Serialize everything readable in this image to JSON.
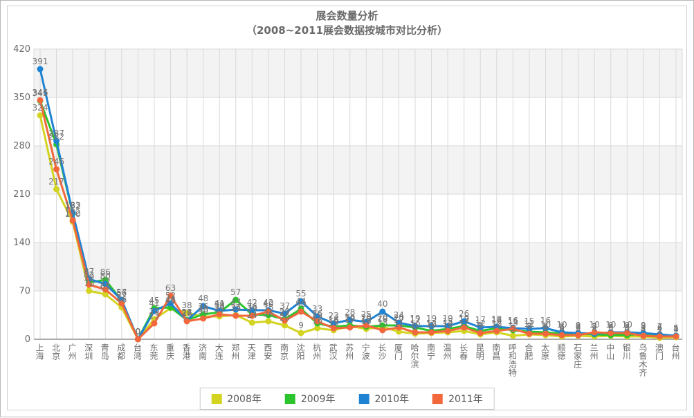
{
  "title": {
    "line1": "展会数量分析",
    "line2": "（2008~2011展会数据按城市对比分析）"
  },
  "chart_data": {
    "type": "line",
    "title": "展会数量分析",
    "subtitle": "（2008~2011展会数据按城市对比分析）",
    "xlabel": "",
    "ylabel": "",
    "ylim": [
      0,
      420
    ],
    "yticks": [
      0,
      70,
      140,
      210,
      280,
      350,
      420
    ],
    "grid": true,
    "legend_position": "bottom",
    "categories": [
      "上海",
      "北京",
      "广州",
      "深圳",
      "青岛",
      "成都",
      "台湾",
      "东莞",
      "重庆",
      "香港",
      "济南",
      "大连",
      "郑州",
      "天津",
      "西安",
      "南京",
      "沈阳",
      "杭州",
      "武汉",
      "苏州",
      "宁波",
      "长沙",
      "厦门",
      "哈尔滨",
      "南宁",
      "温州",
      "长春",
      "昆明",
      "南昌",
      "呼和浩特",
      "合肥",
      "太原",
      "顺德",
      "石家庄",
      "兰州",
      "中山",
      "银川",
      "乌鲁木齐",
      "澳门",
      "台州"
    ],
    "series": [
      {
        "name": "2008年",
        "color": "#d3d322",
        "values": [
          324,
          217,
          170,
          70,
          65,
          46,
          0,
          29,
          45,
          38,
          33,
          33,
          35,
          24,
          26,
          20,
          9,
          16,
          13,
          19,
          15,
          18,
          11,
          8,
          9,
          10,
          12,
          7,
          10,
          5,
          7,
          6,
          4,
          5,
          4,
          5,
          4,
          4,
          2,
          3
        ]
      },
      {
        "name": "2009年",
        "color": "#2cc42c",
        "values": [
          345,
          282,
          182,
          82,
          86,
          56,
          0,
          45,
          46,
          28,
          36,
          39,
          57,
          36,
          35,
          29,
          44,
          23,
          18,
          20,
          18,
          20,
          20,
          17,
          12,
          15,
          19,
          12,
          16,
          13,
          11,
          10,
          8,
          8,
          7,
          6,
          6,
          8,
          6,
          5
        ]
      },
      {
        "name": "2010年",
        "color": "#1f83d3",
        "values": [
          391,
          287,
          183,
          87,
          80,
          57,
          0,
          41,
          52,
          27,
          48,
          41,
          43,
          42,
          42,
          37,
          55,
          33,
          23,
          28,
          25,
          40,
          24,
          19,
          19,
          19,
          26,
          17,
          18,
          16,
          15,
          16,
          10,
          9,
          8,
          10,
          10,
          9,
          7,
          5
        ]
      },
      {
        "name": "2011年",
        "color": "#f2683c",
        "values": [
          346,
          246,
          172,
          79,
          72,
          52,
          0,
          23,
          63,
          26,
          30,
          36,
          34,
          34,
          40,
          27,
          40,
          26,
          16,
          17,
          20,
          13,
          17,
          10,
          10,
          12,
          17,
          9,
          12,
          15,
          8,
          8,
          6,
          6,
          10,
          9,
          9,
          5,
          4,
          4
        ]
      }
    ]
  },
  "layout_colors": {
    "band_gray": "#f3f3f3",
    "gridline": "#d9d9d9",
    "axis_line": "#ababab",
    "point_label": "#757575",
    "tick_label": "#6a6a6a"
  }
}
